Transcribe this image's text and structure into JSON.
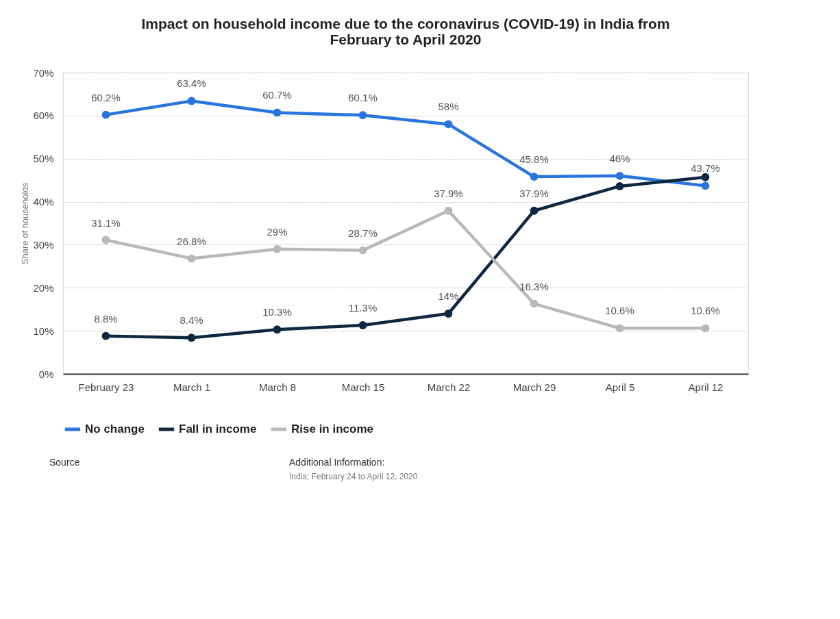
{
  "chart_data": {
    "type": "line",
    "title": [
      "Impact on household income due to the coronavirus (COVID-19) in India from",
      "February to April 2020"
    ],
    "ylabel": "Share of households",
    "categories": [
      "February 23",
      "March 1",
      "March 8",
      "March 15",
      "March 22",
      "March 29",
      "April 5",
      "April 12"
    ],
    "series": [
      {
        "name": "No change",
        "color": "#2876dd",
        "values": [
          60.2,
          63.4,
          60.7,
          60.1,
          58,
          45.8,
          46,
          43.7
        ],
        "value_labels": [
          "60.2%",
          "63.4%",
          "60.7%",
          "60.1%",
          "58%",
          "45.8%",
          "46%",
          "43.7%"
        ]
      },
      {
        "name": "Fall in income",
        "color": "#0f2841",
        "values": [
          8.8,
          8.4,
          10.3,
          11.3,
          14,
          37.9,
          43.6,
          45.7
        ],
        "value_labels": [
          "8.8%",
          "8.4%",
          "10.3%",
          "11.3%",
          "14%",
          "37.9%",
          null,
          null
        ]
      },
      {
        "name": "Rise in income",
        "color": "#b9b9b9",
        "values": [
          31.1,
          26.8,
          29,
          28.7,
          37.9,
          16.3,
          10.6,
          10.6
        ],
        "value_labels": [
          "31.1%",
          "26.8%",
          "29%",
          "28.7%",
          "37.9%",
          "16.3%",
          "10.6%",
          "10.6%"
        ]
      }
    ],
    "ylim": [
      0,
      70
    ],
    "yticks": [
      {
        "value": 0,
        "label": "0%"
      },
      {
        "value": 10,
        "label": "10%"
      },
      {
        "value": 20,
        "label": "20%"
      },
      {
        "value": 30,
        "label": "30%"
      },
      {
        "value": 40,
        "label": "40%"
      },
      {
        "value": 50,
        "label": "50%"
      },
      {
        "value": 60,
        "label": "60%"
      },
      {
        "value": 70,
        "label": "70%"
      }
    ],
    "grid": "y",
    "legend": "bottom",
    "marker": "circle",
    "line_style": "solid",
    "annotations": [
      "Source",
      "Additional Information:",
      "India; February 24 to April 12, 2020"
    ]
  }
}
